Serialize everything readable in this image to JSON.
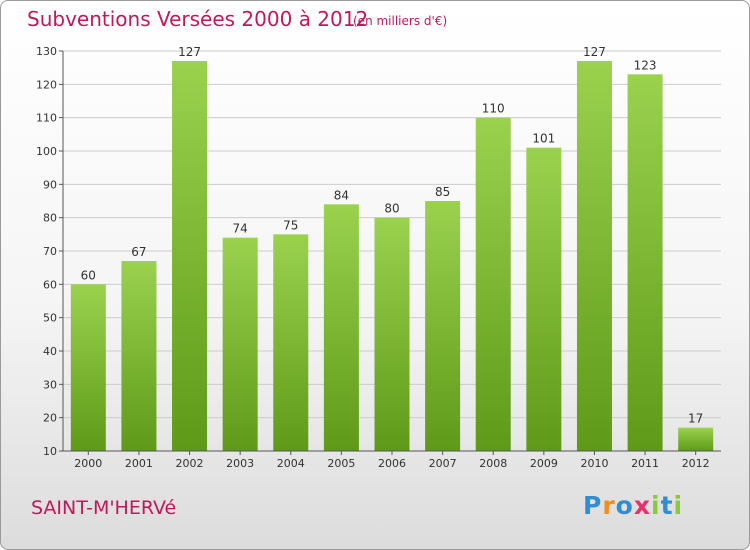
{
  "chart_data": {
    "type": "bar",
    "title": "Subventions Versées 2000 à 2012",
    "subtitle": "(en milliers d'€)",
    "categories": [
      "2000",
      "2001",
      "2002",
      "2003",
      "2004",
      "2005",
      "2006",
      "2007",
      "2008",
      "2009",
      "2010",
      "2011",
      "2012"
    ],
    "values": [
      60,
      67,
      127,
      74,
      75,
      84,
      80,
      85,
      110,
      101,
      127,
      123,
      17
    ],
    "ylim": [
      10,
      130
    ],
    "yticks": [
      10,
      20,
      30,
      40,
      50,
      60,
      70,
      80,
      90,
      100,
      110,
      120,
      130
    ],
    "grid": true,
    "bar_color_top": "#9ad24e",
    "bar_color_bottom": "#5e9a18"
  },
  "commune": "SAINT-M'HERVé",
  "logo": {
    "text": "Proxiti",
    "letter_colors": [
      "#2f8ecf",
      "#f28c1e",
      "#2f8ecf",
      "#e8316b",
      "#8dc63f",
      "#2f8ecf",
      "#8dc63f"
    ]
  },
  "colors": {
    "accent": "#c0185b",
    "grid": "#cccccc",
    "axis": "#555555"
  }
}
